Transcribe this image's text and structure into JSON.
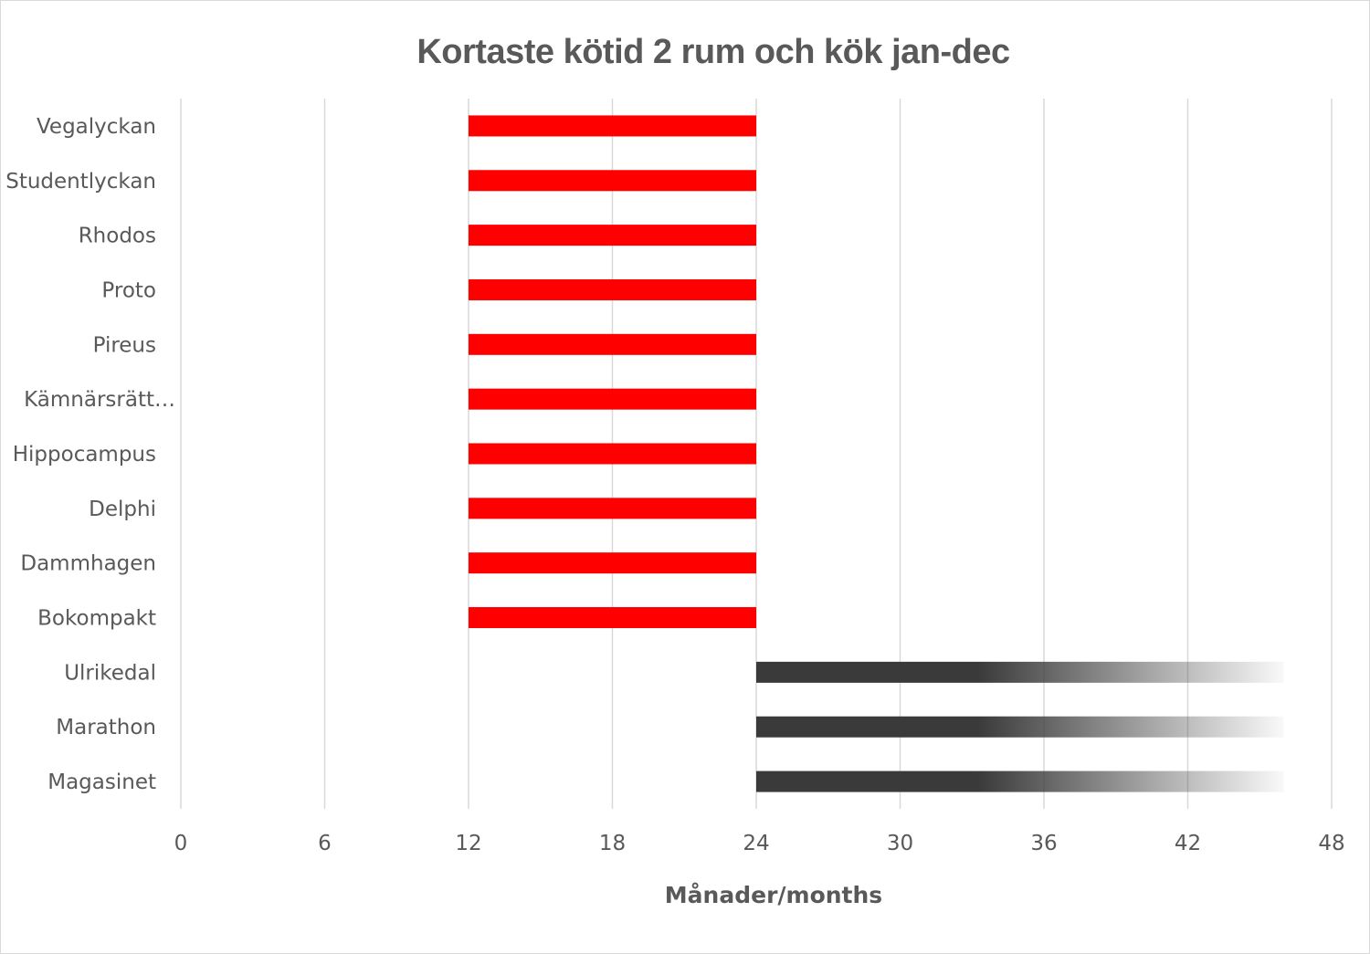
{
  "chart_data": {
    "type": "bar",
    "orientation": "horizontal",
    "stacked": true,
    "title": "Kortaste kötid 2 rum och kök jan-dec",
    "xlabel": "Månader/months",
    "ylabel": "",
    "xlim": [
      0,
      48
    ],
    "xticks": [
      "0",
      "6",
      "12",
      "18",
      "24",
      "30",
      "36",
      "42",
      "48"
    ],
    "grid": true,
    "legend": "none",
    "categories": [
      "Vegalyckan",
      "Studentlyckan",
      "Rhodos",
      "Proto",
      "Pireus",
      "Kämnärsrätt…",
      "Hippocampus",
      "Delphi",
      "Dammhagen",
      "Bokompakt",
      "Ulrikedal",
      "Marathon",
      "Magasinet"
    ],
    "bars": [
      {
        "start": 12,
        "end": 24,
        "style": "solid",
        "color": "#ff0000"
      },
      {
        "start": 12,
        "end": 24,
        "style": "solid",
        "color": "#ff0000"
      },
      {
        "start": 12,
        "end": 24,
        "style": "solid",
        "color": "#ff0000"
      },
      {
        "start": 12,
        "end": 24,
        "style": "solid",
        "color": "#ff0000"
      },
      {
        "start": 12,
        "end": 24,
        "style": "solid",
        "color": "#ff0000"
      },
      {
        "start": 12,
        "end": 24,
        "style": "solid",
        "color": "#ff0000"
      },
      {
        "start": 12,
        "end": 24,
        "style": "solid",
        "color": "#ff0000"
      },
      {
        "start": 12,
        "end": 24,
        "style": "solid",
        "color": "#ff0000"
      },
      {
        "start": 12,
        "end": 24,
        "style": "solid",
        "color": "#ff0000"
      },
      {
        "start": 12,
        "end": 24,
        "style": "solid",
        "color": "#ff0000"
      },
      {
        "start": 24,
        "end": 46,
        "style": "gradient",
        "color": "#3a3a3a"
      },
      {
        "start": 24,
        "end": 46,
        "style": "gradient",
        "color": "#3a3a3a"
      },
      {
        "start": 24,
        "end": 46,
        "style": "gradient",
        "color": "#3a3a3a"
      }
    ]
  }
}
